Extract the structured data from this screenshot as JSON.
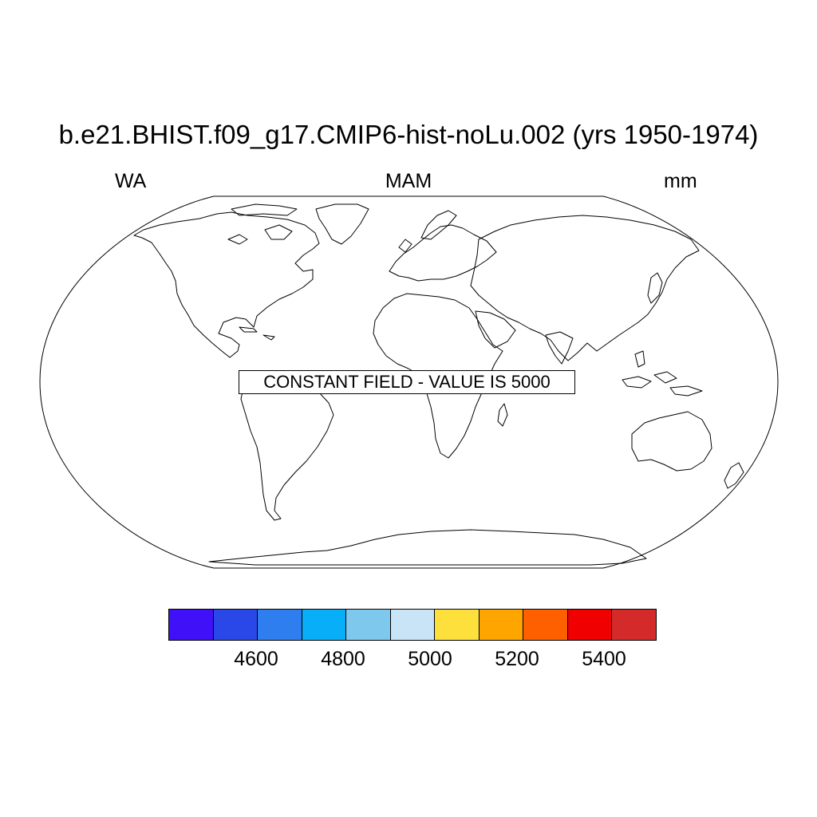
{
  "figure": {
    "title": "b.e21.BHIST.f09_g17.CMIP6-hist-noLu.002 (yrs 1950-1974)",
    "left_label": "WA",
    "center_label": "MAM",
    "right_label": "mm"
  },
  "map": {
    "projection": "Robinson",
    "message": "CONSTANT FIELD - VALUE IS 5000",
    "field_value": 5000
  },
  "colorbar": {
    "colors": [
      "#4010f8",
      "#2a48e8",
      "#2e7ef0",
      "#08aef8",
      "#7ec8ee",
      "#c8e4f6",
      "#fde03c",
      "#fea500",
      "#fe6000",
      "#f00000",
      "#d42a2a"
    ],
    "tick_labels": [
      "4600",
      "4800",
      "5000",
      "5200",
      "5400"
    ],
    "tick_values": [
      4600,
      4800,
      5000,
      5200,
      5400
    ],
    "levels": [
      4500,
      4600,
      4700,
      4800,
      4900,
      5000,
      5100,
      5200,
      5300,
      5400
    ]
  }
}
